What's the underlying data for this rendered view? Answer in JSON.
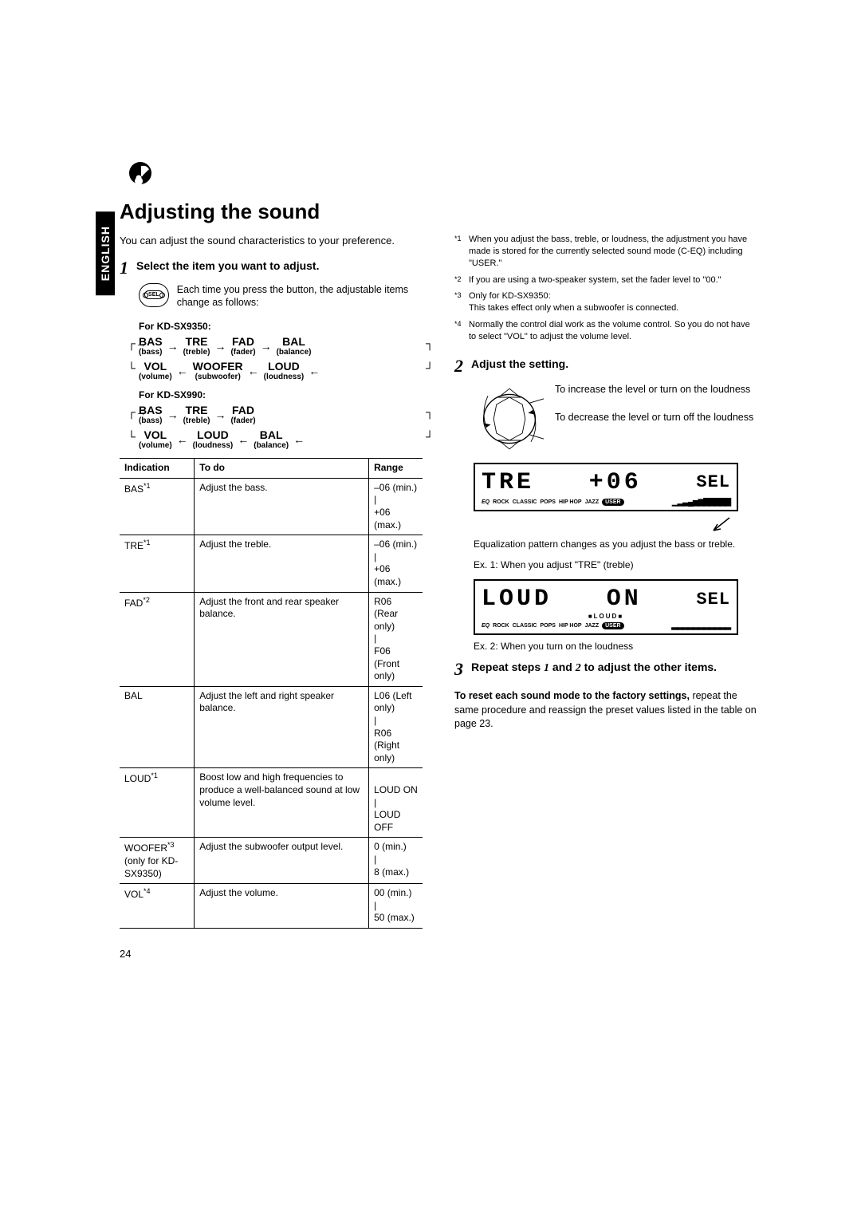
{
  "language_tab": "ENGLISH",
  "heading": "Adjusting the sound",
  "intro": "You can adjust the sound characteristics to your preference.",
  "step1": {
    "num": "1",
    "title": "Select the item you want to adjust.",
    "sel_label": "SEL",
    "desc": "Each time you press the button, the adjustable items change as follows:"
  },
  "for_labels": {
    "a": "For KD-SX9350:",
    "b": "For KD-SX990:"
  },
  "flow_9350": {
    "r1": [
      {
        "main": "BAS",
        "sub": "(bass)"
      },
      {
        "main": "TRE",
        "sub": "(treble)"
      },
      {
        "main": "FAD",
        "sub": "(fader)"
      },
      {
        "main": "BAL",
        "sub": "(balance)"
      }
    ],
    "r2": [
      {
        "main": "VOL",
        "sub": "(volume)"
      },
      {
        "main": "WOOFER",
        "sub": "(subwoofer)"
      },
      {
        "main": "LOUD",
        "sub": "(loudness)"
      }
    ]
  },
  "flow_990": {
    "r1": [
      {
        "main": "BAS",
        "sub": "(bass)"
      },
      {
        "main": "TRE",
        "sub": "(treble)"
      },
      {
        "main": "FAD",
        "sub": "(fader)"
      }
    ],
    "r2": [
      {
        "main": "VOL",
        "sub": "(volume)"
      },
      {
        "main": "LOUD",
        "sub": "(loudness)"
      },
      {
        "main": "BAL",
        "sub": "(balance)"
      }
    ]
  },
  "table": {
    "headers": [
      "Indication",
      "To do",
      "Range"
    ],
    "rows": [
      {
        "ind": "BAS",
        "sup": "*1",
        "todo": "Adjust the bass.",
        "range": "–06 (min.)\n|\n+06 (max.)"
      },
      {
        "ind": "TRE",
        "sup": "*1",
        "todo": "Adjust the treble.",
        "range": "–06 (min.)\n|\n+06 (max.)"
      },
      {
        "ind": "FAD",
        "sup": "*2",
        "todo": "Adjust the front and rear speaker balance.",
        "range": "R06 (Rear only)\n|\nF06 (Front only)"
      },
      {
        "ind": "BAL",
        "sup": "",
        "todo": "Adjust the left and right speaker balance.",
        "range": "L06 (Left only)\n|\nR06 (Right only)"
      },
      {
        "ind": "LOUD",
        "sup": "*1",
        "todo": "Boost low and high frequencies to produce a well-balanced sound at low volume level.",
        "range": "\nLOUD ON\n|\nLOUD OFF"
      },
      {
        "ind": "WOOFER",
        "sup": "*3",
        "ind2": "(only for KD-SX9350)",
        "todo": "Adjust the subwoofer output level.",
        "range": "0 (min.)\n|\n8 (max.)"
      },
      {
        "ind": "VOL",
        "sup": "*4",
        "todo": "Adjust the volume.",
        "range": "00 (min.)\n|\n50 (max.)"
      }
    ]
  },
  "footnotes": [
    {
      "mark": "*1",
      "text": "When you adjust the bass, treble, or loudness, the adjustment you have made is stored for the currently selected sound mode (C-EQ) including \"USER.\""
    },
    {
      "mark": "*2",
      "text": "If you are using a two-speaker system, set the fader level to \"00.\""
    },
    {
      "mark": "*3",
      "text": "Only for KD-SX9350:\nThis takes effect only when a subwoofer is connected."
    },
    {
      "mark": "*4",
      "text": "Normally the control dial work as the volume control. So you do not have to select \"VOL\" to adjust the volume level."
    }
  ],
  "step2": {
    "num": "2",
    "title": "Adjust the setting.",
    "up": "To increase the level or turn on the loudness",
    "down": "To decrease the level or turn off the loudness"
  },
  "display1": {
    "text": "TRE",
    "val": "+06",
    "sel": "SEL",
    "eq": [
      "ROCK",
      "CLASSIC",
      "POPS",
      "HIP HOP",
      "JAZZ",
      "USER"
    ]
  },
  "caption1a": "Equalization pattern changes as you adjust the bass or treble.",
  "caption1b": "Ex. 1:  When you adjust \"TRE\" (treble)",
  "display2": {
    "text": "LOUD",
    "val": "ON",
    "sel": "SEL",
    "loud": "LOUD",
    "eq": [
      "ROCK",
      "CLASSIC",
      "POPS",
      "HIP HOP",
      "JAZZ",
      "USER"
    ]
  },
  "caption2": "Ex. 2:  When you turn on the loudness",
  "step3": {
    "num": "3",
    "title_a": "Repeat steps ",
    "one": "1",
    "mid": " and ",
    "two": "2",
    "title_b": " to adjust the other items."
  },
  "reset": {
    "bold": "To reset each sound mode to the factory settings,",
    "rest": " repeat the same procedure and reassign the preset values listed in the table on page 23."
  },
  "page_num": "24"
}
